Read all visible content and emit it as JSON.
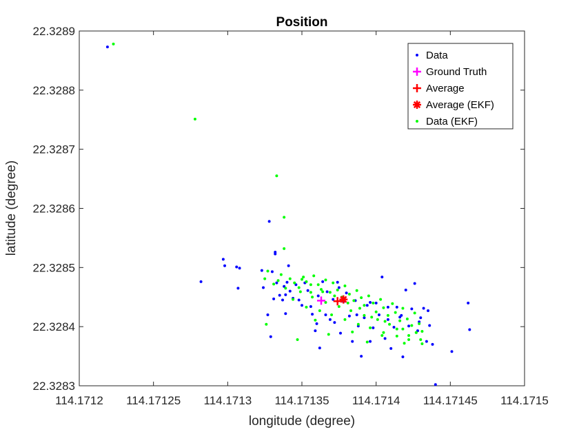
{
  "chart_data": {
    "type": "scatter",
    "title": "Position",
    "xlabel": "longitude (degree)",
    "ylabel": "latitude (degree)",
    "xlim": [
      114.1712,
      114.1715
    ],
    "ylim": [
      22.3283,
      22.3289
    ],
    "xticks": [
      114.1712,
      114.17125,
      114.1713,
      114.17135,
      114.1714,
      114.17145,
      114.1715
    ],
    "xtick_labels": [
      "114.1712",
      "114.17125",
      "114.1713",
      "114.17135",
      "114.1714",
      "114.17145",
      "114.1715"
    ],
    "yticks": [
      22.3283,
      22.3284,
      22.3285,
      22.3286,
      22.3287,
      22.3288,
      22.3289
    ],
    "ytick_labels": [
      "22.3283",
      "22.3284",
      "22.3285",
      "22.3286",
      "22.3287",
      "22.3288",
      "22.3289"
    ],
    "grid": false,
    "legend_position": "top-right",
    "series": [
      {
        "name": "Data",
        "marker": "dot",
        "color": "#0000ff",
        "x": [
          114.171219,
          114.171282,
          114.171297,
          114.171298,
          114.171306,
          114.171307,
          114.171308,
          114.171323,
          114.171324,
          114.171327,
          114.171329,
          114.17133,
          114.171331,
          114.171332,
          114.171333,
          114.171335,
          114.171337,
          114.171338,
          114.171339,
          114.17134,
          114.171341,
          114.171342,
          114.171344,
          114.171346,
          114.171348,
          114.17135,
          114.171352,
          114.171354,
          114.171356,
          114.171357,
          114.171359,
          114.171361,
          114.171362,
          114.171364,
          114.171366,
          114.171367,
          114.171369,
          114.171371,
          114.171372,
          114.171374,
          114.171376,
          114.171378,
          114.17138,
          114.171382,
          114.171384,
          114.171386,
          114.171388,
          114.17139,
          114.171392,
          114.171394,
          114.171396,
          114.171398,
          114.1714,
          114.171402,
          114.171404,
          114.171406,
          114.171408,
          114.17141,
          114.171412,
          114.171414,
          114.171416,
          114.171418,
          114.17142,
          114.171422,
          114.171424,
          114.171426,
          114.171428,
          114.17143,
          114.171432,
          114.171434,
          114.171436,
          114.171438,
          114.17144,
          114.171451,
          114.171462,
          114.171463,
          114.171328,
          114.171332,
          114.171339,
          114.17136,
          114.171375,
          114.171387,
          114.171396,
          114.171408,
          114.171417,
          114.171429,
          114.171435
        ],
        "y": [
          22.328873,
          22.328476,
          22.328514,
          22.328503,
          22.328501,
          22.328465,
          22.328499,
          22.328495,
          22.328466,
          22.32842,
          22.328383,
          22.328493,
          22.328447,
          22.328523,
          22.328474,
          22.328453,
          22.328445,
          22.328468,
          22.328422,
          22.328475,
          22.328503,
          22.32846,
          22.328448,
          22.328471,
          22.328445,
          22.328436,
          22.328474,
          22.328461,
          22.328434,
          22.328421,
          22.328393,
          22.328452,
          22.328364,
          22.328476,
          22.32842,
          22.328459,
          22.328412,
          22.328446,
          22.328407,
          22.328475,
          22.328389,
          22.328442,
          22.328457,
          22.328418,
          22.328375,
          22.328444,
          22.328401,
          22.32835,
          22.328415,
          22.328436,
          22.328375,
          22.328398,
          22.32844,
          22.32842,
          22.328484,
          22.32838,
          22.328412,
          22.328363,
          22.328399,
          22.328433,
          22.328416,
          22.328349,
          22.328462,
          22.328401,
          22.32843,
          22.328473,
          22.328393,
          22.328415,
          22.328431,
          22.328375,
          22.328402,
          22.32837,
          22.328302,
          22.328358,
          22.32844,
          22.328395,
          22.328578,
          22.328526,
          22.328454,
          22.328405,
          22.328466,
          22.32842,
          22.328441,
          22.328433,
          22.328419,
          22.328408,
          22.328427
        ]
      },
      {
        "name": "Ground Truth",
        "marker": "plus",
        "color": "#ff00ff",
        "x": [
          114.171363
        ],
        "y": [
          22.328444
        ]
      },
      {
        "name": "Average",
        "marker": "plus",
        "color": "#ff0000",
        "x": [
          114.171374
        ],
        "y": [
          22.328443
        ]
      },
      {
        "name": "Average (EKF)",
        "marker": "asterisk",
        "color": "#ff0000",
        "x": [
          114.171378
        ],
        "y": [
          22.328446
        ]
      },
      {
        "name": "Data (EKF)",
        "marker": "dot",
        "color": "#00ff00",
        "x": [
          114.171223,
          114.171278,
          114.171333,
          114.171338,
          114.171338,
          114.171325,
          114.171327,
          114.171331,
          114.171334,
          114.171336,
          114.171339,
          114.171342,
          114.171345,
          114.171348,
          114.171351,
          114.171353,
          114.171356,
          114.171358,
          114.171361,
          114.171363,
          114.171366,
          114.171369,
          114.171371,
          114.171374,
          114.171377,
          114.171379,
          114.171382,
          114.171385,
          114.171387,
          114.17139,
          114.171392,
          114.171395,
          114.171398,
          114.1714,
          114.171403,
          114.171405,
          114.171408,
          114.171411,
          114.171413,
          114.171416,
          114.171418,
          114.171421,
          114.171424,
          114.171426,
          114.171429,
          114.171431,
          114.171344,
          114.171349,
          114.171353,
          114.171357,
          114.171362,
          114.171366,
          114.17137,
          114.171375,
          114.171379,
          114.171383,
          114.171388,
          114.171392,
          114.171396,
          114.171401,
          114.171405,
          114.171409,
          114.171414,
          114.171418,
          114.171422,
          114.171427,
          114.171431,
          114.17135,
          114.171356,
          114.171364,
          114.171372,
          114.171381,
          114.171389,
          114.171397,
          114.171406,
          114.171414,
          114.171422,
          114.17143,
          114.171326,
          114.171347,
          114.171359,
          114.171368,
          114.171384,
          114.171394,
          114.171404,
          114.171419,
          114.171427
        ],
        "y": [
          22.328878,
          22.328751,
          22.328655,
          22.328585,
          22.328532,
          22.328481,
          22.328494,
          22.328472,
          22.328478,
          22.328488,
          22.328465,
          22.328481,
          22.328474,
          22.328466,
          22.328484,
          22.328476,
          22.328458,
          22.328486,
          22.328471,
          22.328463,
          22.328479,
          22.328458,
          22.328474,
          22.328462,
          22.32845,
          22.328469,
          22.328455,
          22.328444,
          22.328461,
          22.328449,
          22.328436,
          22.328452,
          22.32844,
          22.328425,
          22.328446,
          22.328432,
          22.328419,
          22.328439,
          22.328424,
          22.32841,
          22.328431,
          22.328413,
          22.328402,
          22.328423,
          22.328405,
          22.328392,
          22.328446,
          22.328459,
          22.328433,
          22.32845,
          22.328427,
          22.328441,
          22.32842,
          22.328434,
          22.328412,
          22.328427,
          22.328404,
          22.328419,
          22.328398,
          22.328412,
          22.32839,
          22.328404,
          22.328384,
          22.328396,
          22.328378,
          22.32839,
          22.328371,
          22.32848,
          22.328471,
          22.328459,
          22.328452,
          22.32844,
          22.328431,
          22.328416,
          22.328409,
          22.328396,
          22.328385,
          22.328378,
          22.328404,
          22.328378,
          22.328411,
          22.328387,
          22.328391,
          22.328374,
          22.328385,
          22.328372,
          22.32839
        ]
      }
    ]
  }
}
